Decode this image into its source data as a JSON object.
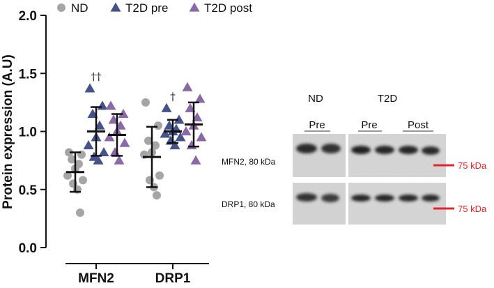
{
  "chart_data": [
    {
      "type": "scatter",
      "title": "",
      "xlabel": "",
      "ylabel": "Protein expression (A.U)",
      "ylim": [
        0,
        2.0
      ],
      "yticks": [
        "0.0",
        "0.5",
        "1.0",
        "1.5",
        "2.0"
      ],
      "grid": false,
      "legend_position": "top",
      "categories": [
        "MFN2",
        "DRP1"
      ],
      "series": [
        {
          "name": "ND",
          "marker": "circle",
          "color": "#a6a6a6",
          "groups": [
            {
              "category": "MFN2",
              "points": [
                0.82,
                0.8,
                0.76,
                0.72,
                0.68,
                0.62,
                0.58,
                0.55,
                0.5,
                0.3
              ],
              "mean": 0.65,
              "sd_low": 0.48,
              "sd_high": 0.82
            },
            {
              "category": "DRP1",
              "points": [
                1.25,
                1.05,
                0.92,
                0.88,
                0.82,
                0.8,
                0.62,
                0.58,
                0.52,
                0.45
              ],
              "mean": 0.78,
              "sd_low": 0.52,
              "sd_high": 1.04
            }
          ]
        },
        {
          "name": "T2D pre",
          "marker": "triangle",
          "color": "#46538a",
          "groups": [
            {
              "category": "MFN2",
              "points": [
                1.37,
                1.22,
                1.15,
                1.05,
                0.95,
                0.88,
                0.82,
                0.78,
                0.75
              ],
              "mean": 1.0,
              "sd_low": 0.79,
              "sd_high": 1.21
            },
            {
              "category": "DRP1",
              "points": [
                1.2,
                1.1,
                1.05,
                1.02,
                1.0,
                0.98,
                0.95,
                0.92,
                0.88
              ],
              "mean": 1.0,
              "sd_low": 0.9,
              "sd_high": 1.1
            }
          ]
        },
        {
          "name": "T2D post",
          "marker": "triangle",
          "color": "#8a6aa6",
          "groups": [
            {
              "category": "MFN2",
              "points": [
                1.22,
                1.15,
                1.1,
                1.05,
                1.0,
                0.95,
                0.9,
                0.82,
                0.75
              ],
              "mean": 0.97,
              "sd_low": 0.79,
              "sd_high": 1.15
            },
            {
              "category": "DRP1",
              "points": [
                1.38,
                1.28,
                1.2,
                1.12,
                1.05,
                1.0,
                0.95,
                0.88,
                0.75
              ],
              "mean": 1.06,
              "sd_low": 0.87,
              "sd_high": 1.25
            }
          ]
        }
      ],
      "annotations": [
        {
          "category": "MFN2",
          "series": "T2D pre",
          "text": "††",
          "y": 1.44
        },
        {
          "category": "DRP1",
          "series": "T2D pre",
          "text": "†",
          "y": 1.27
        }
      ]
    }
  ],
  "blot": {
    "group_nd": "ND",
    "group_t2d": "T2D",
    "col_nd_pre": "Pre",
    "col_t2d_pre": "Pre",
    "col_t2d_post": "Post",
    "row1_label": "MFN2, 80 kDa",
    "row2_label": "DRP1, 80 kDa",
    "marker1": "75 kDa",
    "marker2": "75 kDa",
    "marker_color": "#e8232a"
  }
}
